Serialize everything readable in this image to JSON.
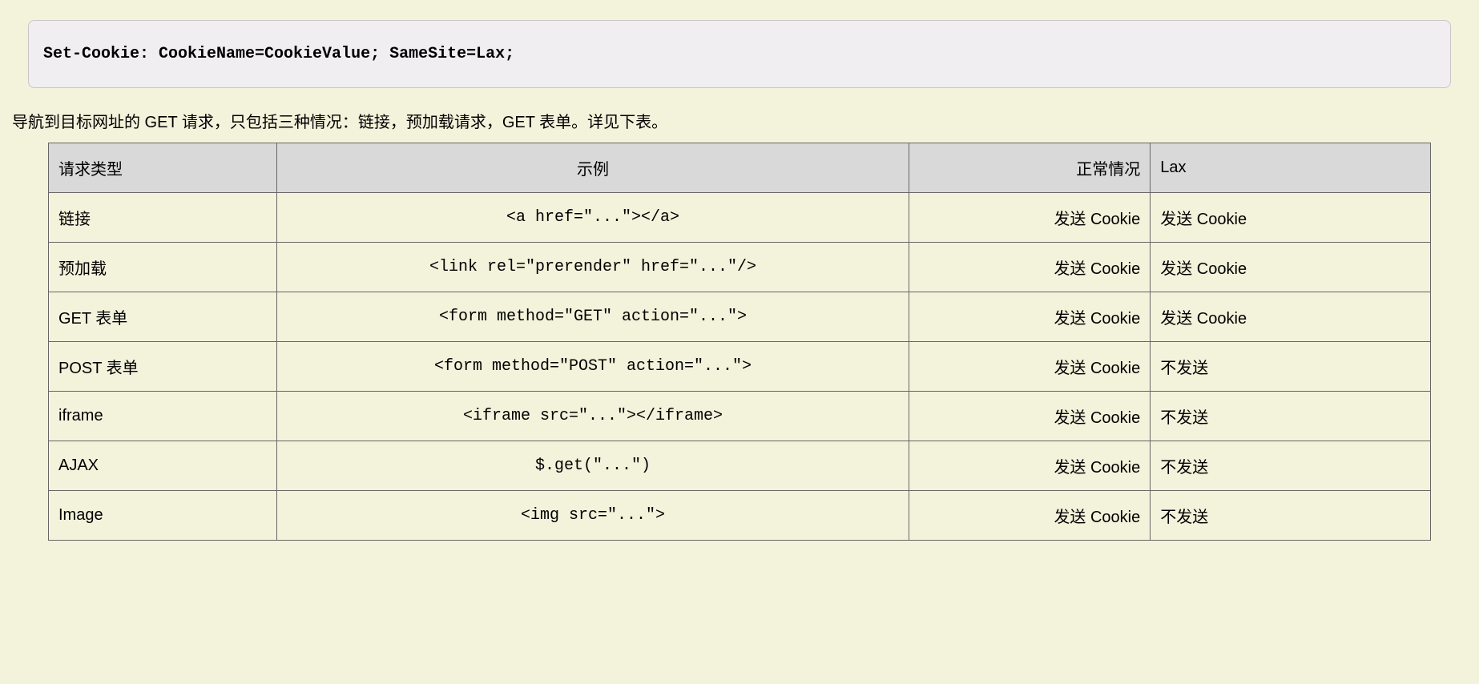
{
  "code_block": {
    "text": "Set-Cookie: CookieName=CookieValue; SameSite=Lax;",
    "background_color": "#f0eef0",
    "border_color": "#c8c6c8",
    "font_family": "monospace"
  },
  "intro_text": "导航到目标网址的 GET 请求，只包括三种情况：链接，预加载请求，GET 表单。详见下表。",
  "page": {
    "background_color": "#f3f2db",
    "text_color": "#000000",
    "base_fontsize": 20
  },
  "table": {
    "type": "table",
    "header_background": "#dad9da",
    "row_background": "#f3f2db",
    "border_color": "#666666",
    "columns": [
      {
        "key": "type",
        "label": "请求类型",
        "align": "left",
        "width_pct": 16
      },
      {
        "key": "example",
        "label": "示例",
        "align": "center",
        "width_pct": 47,
        "font": "monospace"
      },
      {
        "key": "normal",
        "label": "正常情况",
        "align": "right",
        "width_pct": 17
      },
      {
        "key": "lax",
        "label": "Lax",
        "align": "left",
        "width_pct": 20
      }
    ],
    "rows": [
      {
        "type": "链接",
        "example": "<a href=\"...\"></a>",
        "normal": "发送 Cookie",
        "lax": "发送 Cookie"
      },
      {
        "type": "预加载",
        "example": "<link rel=\"prerender\" href=\"...\"/>",
        "normal": "发送 Cookie",
        "lax": "发送 Cookie"
      },
      {
        "type": "GET 表单",
        "example": "<form method=\"GET\" action=\"...\">",
        "normal": "发送 Cookie",
        "lax": "发送 Cookie"
      },
      {
        "type": "POST 表单",
        "example": "<form method=\"POST\" action=\"...\">",
        "normal": "发送 Cookie",
        "lax": "不发送"
      },
      {
        "type": "iframe",
        "example": "<iframe src=\"...\"></iframe>",
        "normal": "发送 Cookie",
        "lax": "不发送"
      },
      {
        "type": "AJAX",
        "example": "$.get(\"...\")",
        "normal": "发送 Cookie",
        "lax": "不发送"
      },
      {
        "type": "Image",
        "example": "<img src=\"...\">",
        "normal": "发送 Cookie",
        "lax": "不发送"
      }
    ]
  }
}
